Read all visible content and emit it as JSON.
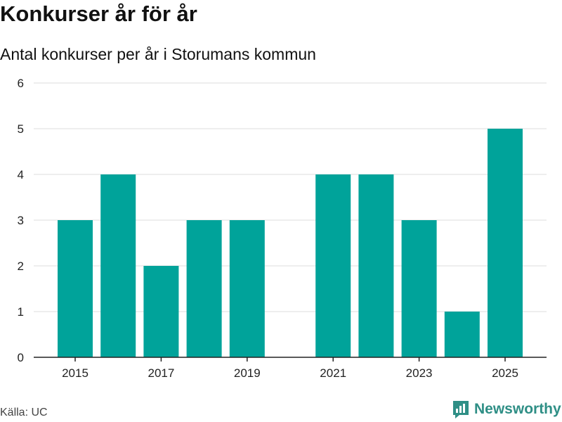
{
  "title": "Konkurser år för år",
  "subtitle": "Antal konkurser per år i Storumans kommun",
  "source": "Källa: UC",
  "brand": {
    "name": "Newsworthy",
    "icon": "newsworthy-logo-icon"
  },
  "colors": {
    "bar": "#00a39a",
    "grid": "#dddddd",
    "axis": "#222222",
    "brand": "#2f8f86"
  },
  "chart_data": {
    "type": "bar",
    "title": "Konkurser år för år",
    "subtitle": "Antal konkurser per år i Storumans kommun",
    "xlabel": "",
    "ylabel": "",
    "categories": [
      "2015",
      "2016",
      "2017",
      "2018",
      "2019",
      "2020",
      "2021",
      "2022",
      "2023",
      "2024",
      "2025"
    ],
    "values": [
      3,
      4,
      2,
      3,
      3,
      0,
      4,
      4,
      3,
      1,
      5
    ],
    "x_tick_labels": [
      "2015",
      "2017",
      "2019",
      "2021",
      "2023",
      "2025"
    ],
    "y_ticks": [
      "0",
      "1",
      "2",
      "3",
      "4",
      "5",
      "6"
    ],
    "ylim": [
      0,
      6
    ],
    "grid": true,
    "legend": "none"
  }
}
